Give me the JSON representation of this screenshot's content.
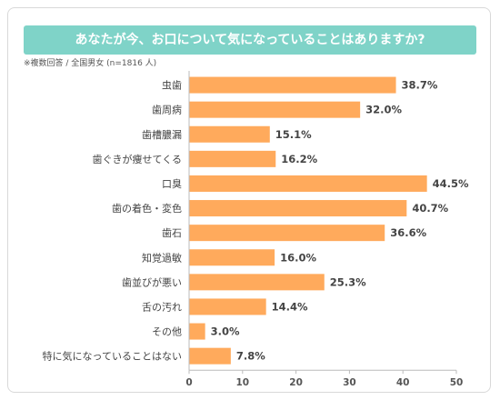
{
  "title": "あなたが今、お口について気になっていることはありますか?",
  "note": "※複数回答 / 全国男女 (n=1816 人)",
  "colors": {
    "bar": "#ffaa5c",
    "banner": "#7fd3c8",
    "axis": "#bbbbbb"
  },
  "chart_data": {
    "type": "bar",
    "orientation": "horizontal",
    "categories": [
      "虫歯",
      "歯周病",
      "歯槽膿漏",
      "歯ぐきが痩せてくる",
      "口臭",
      "歯の着色・変色",
      "歯石",
      "知覚過敏",
      "歯並びが悪い",
      "舌の汚れ",
      "その他",
      "特に気になっていることはない"
    ],
    "values": [
      38.7,
      32.0,
      15.1,
      16.2,
      44.5,
      40.7,
      36.6,
      16.0,
      25.3,
      14.4,
      3.0,
      7.8
    ],
    "value_labels": [
      "38.7%",
      "32.0%",
      "15.1%",
      "16.2%",
      "44.5%",
      "40.7%",
      "36.6%",
      "16.0%",
      "25.3%",
      "14.4%",
      "3.0%",
      "7.8%"
    ],
    "xlim": [
      0,
      50
    ],
    "xticks": [
      0,
      10,
      20,
      30,
      40,
      50
    ],
    "xtick_labels": [
      "0",
      "10",
      "20",
      "30",
      "40",
      "50"
    ],
    "grid": false
  }
}
